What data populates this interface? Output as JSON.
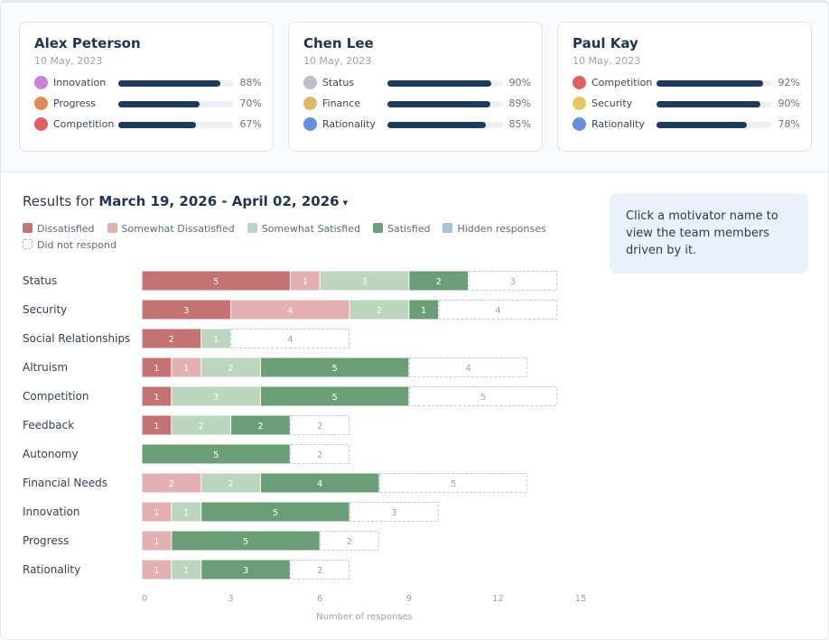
{
  "colors": {
    "dissatisfied": "#c47274",
    "somewhat_dissatisfied": "#e2b0b1",
    "somewhat_satisfied": "#bcd5be",
    "satisfied": "#6b9e77",
    "hidden": "#a9c2d6",
    "bar_fill": "#1f3a5f"
  },
  "cards": [
    {
      "name": "Alex Peterson",
      "date": "10 May, 2023",
      "motivators": [
        {
          "label": "Innovation",
          "percent": 88,
          "percent_text": "88%",
          "color": "#c982d9"
        },
        {
          "label": "Progress",
          "percent": 70,
          "percent_text": "70%",
          "color": "#e08a5a"
        },
        {
          "label": "Competition",
          "percent": 67,
          "percent_text": "67%",
          "color": "#e06060"
        }
      ]
    },
    {
      "name": "Chen Lee",
      "date": "10 May, 2023",
      "motivators": [
        {
          "label": "Status",
          "percent": 90,
          "percent_text": "90%",
          "color": "#b9bec7"
        },
        {
          "label": "Finance",
          "percent": 89,
          "percent_text": "89%",
          "color": "#ddb865"
        },
        {
          "label": "Rationality",
          "percent": 85,
          "percent_text": "85%",
          "color": "#6690dc"
        }
      ]
    },
    {
      "name": "Paul Kay",
      "date": "10 May, 2023",
      "motivators": [
        {
          "label": "Competition",
          "percent": 92,
          "percent_text": "92%",
          "color": "#e06060"
        },
        {
          "label": "Security",
          "percent": 90,
          "percent_text": "90%",
          "color": "#e2c860"
        },
        {
          "label": "Rationality",
          "percent": 78,
          "percent_text": "78%",
          "color": "#6690dc"
        }
      ]
    }
  ],
  "results": {
    "prefix": "Results for",
    "range": "March 19, 2026 - April 02, 2026",
    "caret": "▾"
  },
  "tip": "Click a motivator name to view the team members driven by it.",
  "chart_data": {
    "type": "bar",
    "orientation": "horizontal",
    "stacked": true,
    "categories": [
      "Status",
      "Security",
      "Social Relationships",
      "Altruism",
      "Competition",
      "Feedback",
      "Autonomy",
      "Financial Needs",
      "Innovation",
      "Progress",
      "Rationality"
    ],
    "series": [
      {
        "name": "Dissatisfied",
        "key": "dissatisfied",
        "values": [
          5,
          3,
          2,
          1,
          1,
          1,
          0,
          0,
          0,
          0,
          0
        ]
      },
      {
        "name": "Somewhat Dissatisfied",
        "key": "somewhat_dissatisfied",
        "values": [
          1,
          4,
          0,
          1,
          0,
          0,
          0,
          2,
          1,
          1,
          1
        ]
      },
      {
        "name": "Somewhat Satisfied",
        "key": "somewhat_satisfied",
        "values": [
          3,
          2,
          1,
          2,
          3,
          2,
          0,
          2,
          1,
          0,
          1
        ]
      },
      {
        "name": "Satisfied",
        "key": "satisfied",
        "values": [
          2,
          1,
          0,
          5,
          5,
          2,
          5,
          4,
          5,
          5,
          3
        ]
      },
      {
        "name": "Hidden responses",
        "key": "hidden",
        "values": [
          0,
          0,
          0,
          0,
          0,
          0,
          0,
          0,
          0,
          0,
          0
        ]
      },
      {
        "name": "Did not respond",
        "key": "no_response",
        "values": [
          3,
          4,
          4,
          4,
          5,
          2,
          2,
          5,
          3,
          2,
          2
        ]
      }
    ],
    "xlim": [
      0,
      15
    ],
    "xticks": [
      0,
      3,
      6,
      9,
      12,
      15
    ],
    "xlabel": "Number of responses",
    "grid": false,
    "legend_position": "top-left"
  }
}
